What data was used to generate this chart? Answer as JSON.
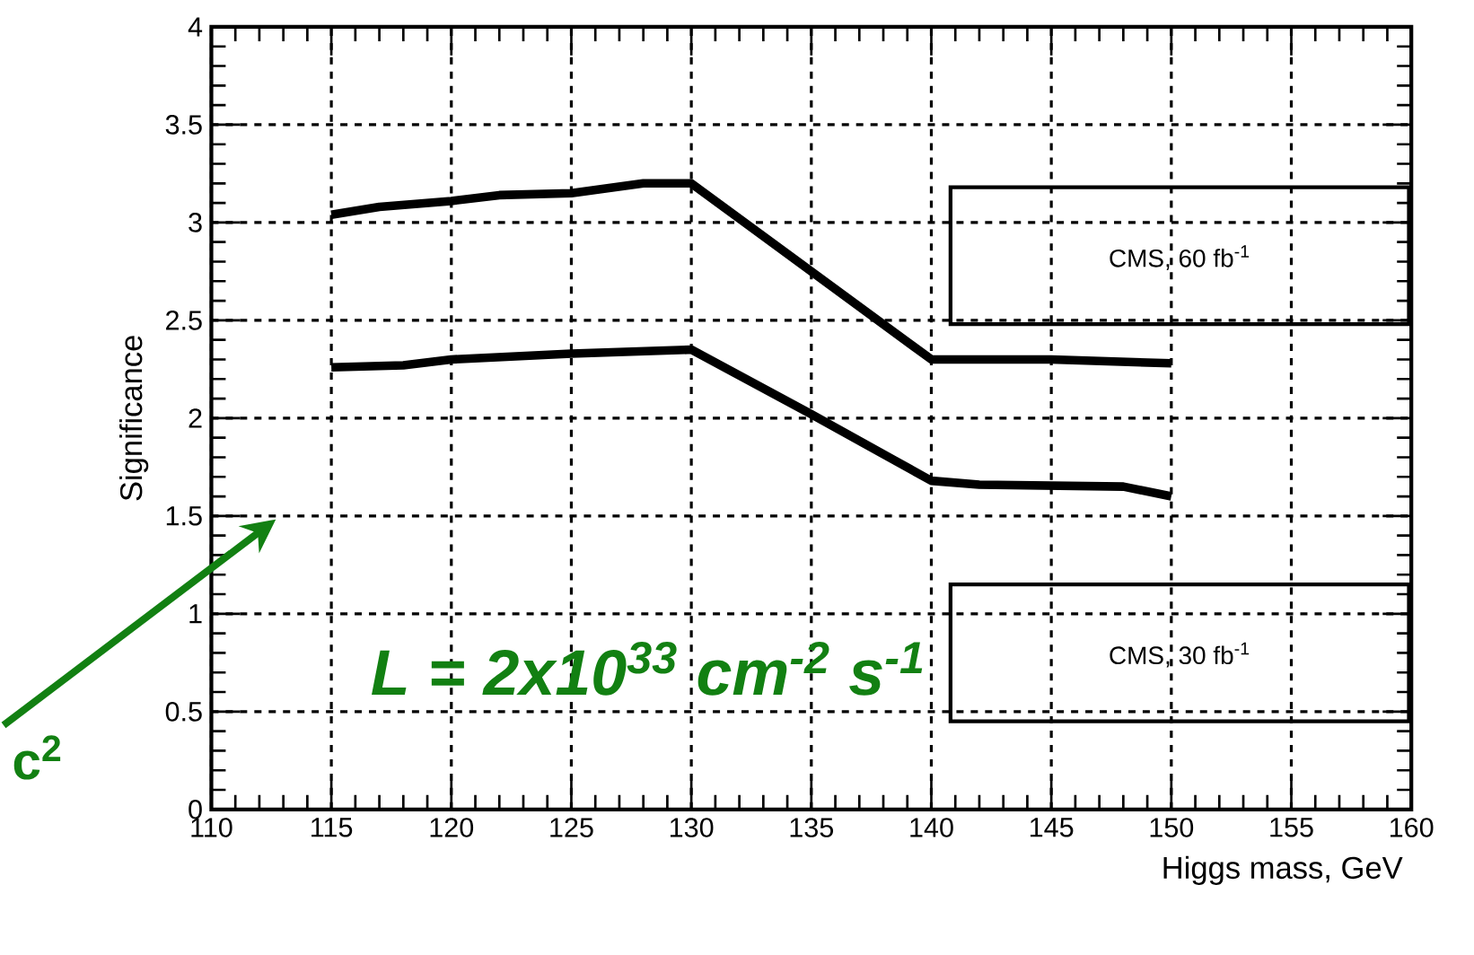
{
  "chart_data": {
    "type": "line",
    "xlabel": "Higgs mass, GeV",
    "ylabel": "Significance",
    "xlim": [
      110,
      160
    ],
    "ylim": [
      0,
      4
    ],
    "xticks": [
      110,
      115,
      120,
      125,
      130,
      135,
      140,
      145,
      150,
      155,
      160
    ],
    "yticks": [
      0,
      0.5,
      1,
      1.5,
      2,
      2.5,
      3,
      3.5,
      4
    ],
    "grid": true,
    "line_style": "solid",
    "series": [
      {
        "color": "#000000",
        "x": [
          115,
          117,
          120,
          122,
          125,
          128,
          130,
          135,
          140,
          145,
          150
        ],
        "values": [
          3.04,
          3.08,
          3.11,
          3.14,
          3.15,
          3.2,
          3.2,
          2.75,
          2.3,
          2.3,
          2.28
        ]
      },
      {
        "color": "#000000",
        "x": [
          115,
          118,
          120,
          125,
          130,
          135,
          140,
          142,
          148,
          150
        ],
        "values": [
          2.26,
          2.27,
          2.3,
          2.33,
          2.35,
          2.02,
          1.68,
          1.66,
          1.65,
          1.6
        ]
      }
    ],
    "annotations": [
      "L = 2x10$^{33}$ cm$^{-2}$ s$^{-1}$",
      "c$^{2}$",
      "CMS, 60 fb$^{-1}$",
      "CMS, 30 fb$^{-1}$"
    ]
  }
}
